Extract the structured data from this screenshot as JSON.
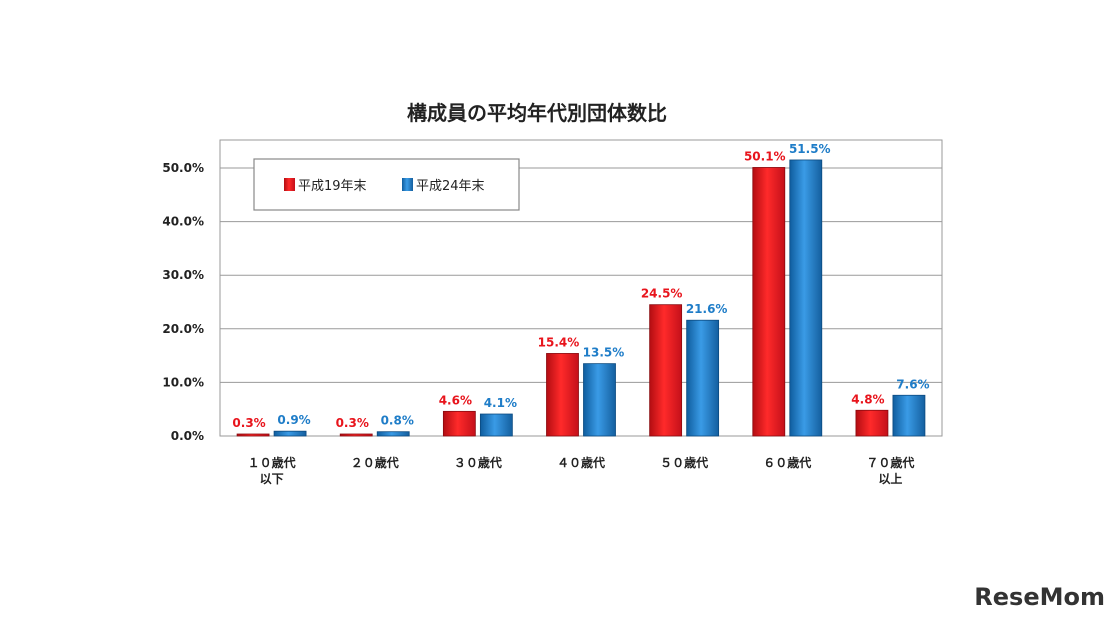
{
  "chart_data": {
    "type": "bar",
    "title": "構成員の平均年代別団体数比",
    "categories": [
      [
        "１０歳代",
        "以下"
      ],
      [
        "２０歳代"
      ],
      [
        "３０歳代"
      ],
      [
        "４０歳代"
      ],
      [
        "５０歳代"
      ],
      [
        "６０歳代"
      ],
      [
        "７０歳代",
        "以上"
      ]
    ],
    "series": [
      {
        "name": "平成19年末",
        "color": "#e8141c",
        "values": [
          0.3,
          0.3,
          4.6,
          15.4,
          24.5,
          50.1,
          4.8
        ],
        "labels": [
          "0.3%",
          "0.3%",
          "4.6%",
          "15.4%",
          "24.5%",
          "50.1%",
          "4.8%"
        ]
      },
      {
        "name": "平成24年末",
        "color": "#1f7dc8",
        "values": [
          0.9,
          0.8,
          4.1,
          13.5,
          21.6,
          51.5,
          7.6
        ],
        "labels": [
          "0.9%",
          "0.8%",
          "4.1%",
          "13.5%",
          "21.6%",
          "51.5%",
          "7.6%"
        ]
      }
    ],
    "yticks": [
      "0.0%",
      "10.0%",
      "20.0%",
      "30.0%",
      "40.0%",
      "50.0%"
    ],
    "ytick_values": [
      0,
      10,
      20,
      30,
      40,
      50
    ],
    "ylim": [
      0,
      50
    ],
    "grid": true,
    "legend_position": "top-left"
  },
  "watermark": "ReseMom"
}
